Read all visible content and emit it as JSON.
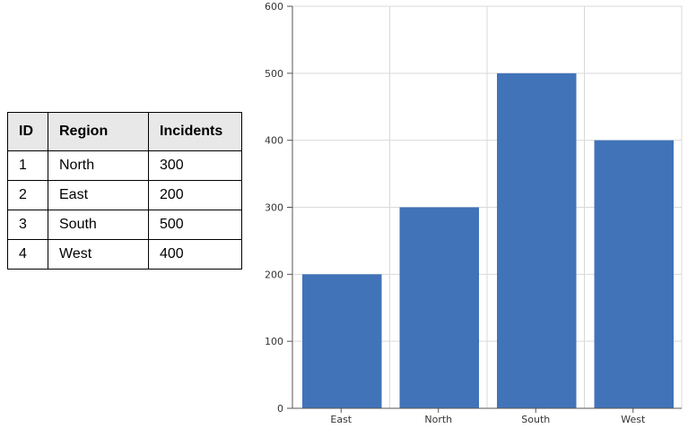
{
  "table": {
    "headers": [
      "ID",
      "Region",
      "Incidents"
    ],
    "rows": [
      [
        "1",
        "North",
        "300"
      ],
      [
        "2",
        "East",
        "200"
      ],
      [
        "3",
        "South",
        "500"
      ],
      [
        "4",
        "West",
        "400"
      ]
    ]
  },
  "chart_data": {
    "type": "bar",
    "categories": [
      "East",
      "North",
      "South",
      "West"
    ],
    "values": [
      200,
      300,
      500,
      400
    ],
    "title": "",
    "xlabel": "",
    "ylabel": "",
    "ylim": [
      0,
      600
    ],
    "yticks": [
      0,
      100,
      200,
      300,
      400,
      500,
      600
    ],
    "grid": true,
    "bar_color": "#4173b9"
  }
}
